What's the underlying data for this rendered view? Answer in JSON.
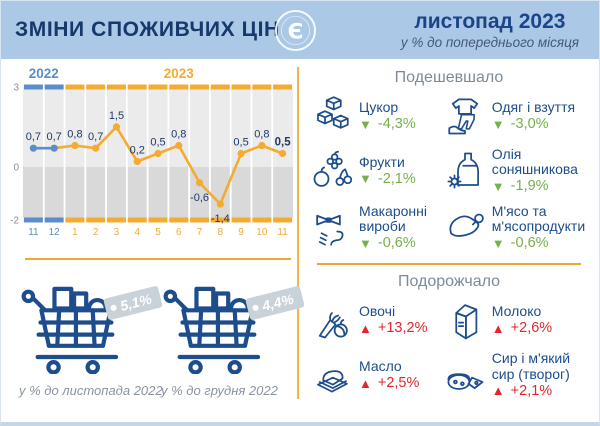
{
  "header": {
    "title": "ЗМІНИ СПОЖИВЧИХ ЦІН",
    "period": "листопад 2023",
    "subtitle": "у % до попереднього місяця",
    "logo_letter": "Є"
  },
  "chart_data": {
    "type": "line",
    "title": "",
    "x": [
      "11",
      "12",
      "1",
      "2",
      "3",
      "4",
      "5",
      "6",
      "7",
      "8",
      "9",
      "10",
      "11"
    ],
    "values": [
      0.7,
      0.7,
      0.8,
      0.7,
      1.5,
      0.2,
      0.5,
      0.8,
      -0.6,
      -1.4,
      0.5,
      0.8,
      0.5
    ],
    "labels": [
      "0,7",
      "0,7",
      "0,8",
      "0,7",
      "1,5",
      "0,2",
      "0,5",
      "0,8",
      "-0,6",
      "-1,4",
      "0,5",
      "0,8",
      "0,5"
    ],
    "emphasis_index": 12,
    "year_groups": [
      {
        "label": "2022",
        "months": 2
      },
      {
        "label": "2023",
        "months": 11
      }
    ],
    "yticks": [
      3,
      0,
      -2
    ],
    "ylim": [
      -2,
      3
    ],
    "unit": "% до попереднього місяця",
    "grid": true,
    "legend": "none"
  },
  "comparisons": [
    {
      "value": "5,1%",
      "label": "у % до листопада 2022"
    },
    {
      "value": "4,4%",
      "label": "у % до грудня 2022"
    }
  ],
  "cheaper": {
    "title": "Подешевшало",
    "items": [
      {
        "icon": "sugar",
        "name": "Цукор",
        "value": "-4,3%"
      },
      {
        "icon": "clothing",
        "name": "Одяг і взуття",
        "value": "-3,0%"
      },
      {
        "icon": "fruits",
        "name": "Фрукти",
        "value": "-2,1%"
      },
      {
        "icon": "sunflower-oil",
        "name": "Олія соняшникова",
        "value": "-1,9%"
      },
      {
        "icon": "pasta",
        "name": "Макаронні вироби",
        "value": "-0,6%"
      },
      {
        "icon": "meat",
        "name": "М'ясо та м'ясопродукти",
        "value": "-0,6%"
      }
    ]
  },
  "pricier": {
    "title": "Подорожчало",
    "items": [
      {
        "icon": "vegetables",
        "name": "Овочі",
        "value": "+13,2%"
      },
      {
        "icon": "milk",
        "name": "Молоко",
        "value": "+2,6%"
      },
      {
        "icon": "butter",
        "name": "Масло",
        "value": "+2,5%"
      },
      {
        "icon": "cheese",
        "name": "Сир і м'який сир (творог)",
        "value": "+2,1%"
      }
    ]
  },
  "colors": {
    "blue_2022": "#5b8ec8",
    "orange_2023": "#f3ab32",
    "navy": "#1d4d8c",
    "value_label": "#1e3a66",
    "ytick": "#8f8f8f",
    "bg_upper": "#ebebeb",
    "bg_lower": "#d9d9d9",
    "green": "#74b14a",
    "red": "#e2262d",
    "header_bg": "#abc8e6"
  }
}
